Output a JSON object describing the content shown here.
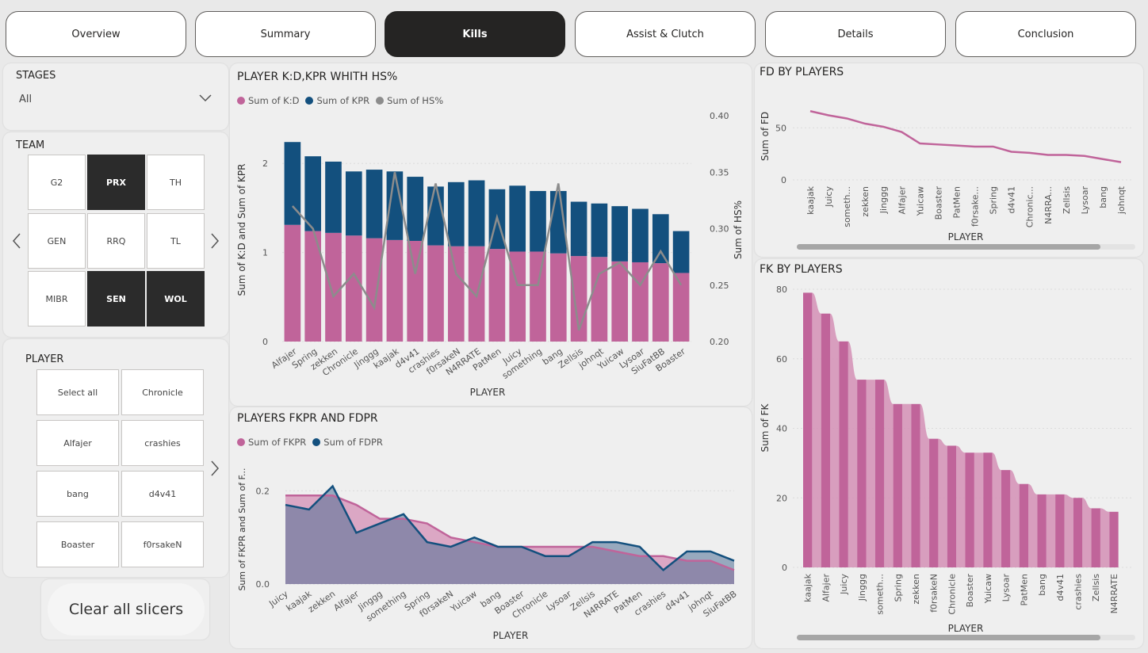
{
  "nav": {
    "tabs": [
      {
        "label": "Overview",
        "active": false
      },
      {
        "label": "Summary",
        "active": false
      },
      {
        "label": "Kills",
        "active": true
      },
      {
        "label": "Assist & Clutch",
        "active": false
      },
      {
        "label": "Details",
        "active": false
      },
      {
        "label": "Conclusion",
        "active": false
      }
    ]
  },
  "slicers": {
    "stages": {
      "title": "STAGES",
      "value": "All"
    },
    "team": {
      "title": "TEAM",
      "tiles": [
        {
          "label": "G2",
          "selected": false
        },
        {
          "label": "PRX",
          "selected": true
        },
        {
          "label": "TH",
          "selected": false
        },
        {
          "label": "GEN",
          "selected": false
        },
        {
          "label": "RRQ",
          "selected": false
        },
        {
          "label": "TL",
          "selected": false
        },
        {
          "label": "MIBR",
          "selected": false
        },
        {
          "label": "SEN",
          "selected": true
        },
        {
          "label": "WOL",
          "selected": true
        }
      ]
    },
    "player": {
      "title": "PLAYER",
      "tiles": [
        {
          "label": "Select all"
        },
        {
          "label": "Chronicle"
        },
        {
          "label": "Alfajer"
        },
        {
          "label": "crashies"
        },
        {
          "label": "bang"
        },
        {
          "label": "d4v41"
        },
        {
          "label": "Boaster"
        },
        {
          "label": "f0rsakeN"
        }
      ]
    },
    "clear_label": "Clear all slicers"
  },
  "colors": {
    "pink": "#c0649a",
    "pink_light": "#d48fb5",
    "navy": "#13507e",
    "grey": "#8c8c8c",
    "area_purple": "#8c8aa8"
  },
  "chart_data": [
    {
      "id": "kd_kpr_hs",
      "type": "bar",
      "title": "PLAYER K:D,KPR WHITH HS%",
      "xlabel": "PLAYER",
      "ylabel": "Sum of K:D and Sum of KPR",
      "y2label": "Sum of HS%",
      "ylim": [
        0,
        2.5
      ],
      "y2lim": [
        0.2,
        0.4
      ],
      "yticks": [
        "0",
        "1",
        "2"
      ],
      "y2ticks": [
        "0.20",
        "0.25",
        "0.30",
        "0.35",
        "0.40"
      ],
      "legend": [
        "Sum of K:D",
        "Sum of KPR",
        "Sum of HS%"
      ],
      "categories": [
        "Alfajer",
        "Spring",
        "zekken",
        "Chronicle",
        "Jinggg",
        "kaajak",
        "d4v41",
        "crashies",
        "f0rsakeN",
        "N4RRATE",
        "PatMen",
        "Juicy",
        "something",
        "bang",
        "Zellsis",
        "johnqt",
        "Yuicaw",
        "Lysoar",
        "SiuFatBB",
        "Boaster"
      ],
      "series": [
        {
          "name": "Sum of K:D",
          "values": [
            1.31,
            1.24,
            1.22,
            1.19,
            1.16,
            1.14,
            1.13,
            1.08,
            1.07,
            1.07,
            1.04,
            1.01,
            1.01,
            0.99,
            0.96,
            0.95,
            0.9,
            0.89,
            0.88,
            0.77
          ]
        },
        {
          "name": "Sum of KPR",
          "values": [
            0.93,
            0.84,
            0.8,
            0.72,
            0.77,
            0.77,
            0.72,
            0.66,
            0.72,
            0.74,
            0.67,
            0.74,
            0.68,
            0.7,
            0.61,
            0.6,
            0.62,
            0.6,
            0.55,
            0.47
          ]
        },
        {
          "name": "Sum of HS%",
          "values": [
            0.32,
            0.3,
            0.24,
            0.26,
            0.23,
            0.35,
            0.26,
            0.34,
            0.26,
            0.24,
            0.31,
            0.25,
            0.25,
            0.34,
            0.21,
            0.26,
            0.27,
            0.25,
            0.28,
            0.25
          ]
        }
      ]
    },
    {
      "id": "fkpr_fdpr",
      "type": "area",
      "title": "PLAYERS FKPR AND FDPR",
      "xlabel": "PLAYER",
      "ylabel": "Sum of FKPR and Sum of F...",
      "ylim": [
        0,
        0.25
      ],
      "yticks": [
        "0.0",
        "0.2"
      ],
      "legend": [
        "Sum of FKPR",
        "Sum of FDPR"
      ],
      "categories": [
        "Juicy",
        "kaajak",
        "zekken",
        "Alfajer",
        "Jinggg",
        "something",
        "Spring",
        "f0rsakeN",
        "Yuicaw",
        "bang",
        "Boaster",
        "Chronicle",
        "Lysoar",
        "Zellsis",
        "N4RRATE",
        "PatMen",
        "crashies",
        "d4v41",
        "johnqt",
        "SiuFatBB"
      ],
      "series": [
        {
          "name": "Sum of FKPR",
          "values": [
            0.19,
            0.19,
            0.19,
            0.17,
            0.14,
            0.14,
            0.13,
            0.1,
            0.09,
            0.08,
            0.08,
            0.08,
            0.08,
            0.08,
            0.07,
            0.06,
            0.06,
            0.05,
            0.05,
            0.03
          ]
        },
        {
          "name": "Sum of FDPR",
          "values": [
            0.17,
            0.16,
            0.21,
            0.11,
            0.13,
            0.15,
            0.09,
            0.08,
            0.1,
            0.08,
            0.08,
            0.06,
            0.06,
            0.09,
            0.09,
            0.08,
            0.03,
            0.07,
            0.07,
            0.05
          ]
        }
      ]
    },
    {
      "id": "fd_players",
      "type": "line",
      "title": "FD BY PLAYERS",
      "xlabel": "PLAYER",
      "ylabel": "Sum of FD",
      "ylim": [
        0,
        70
      ],
      "yticks": [
        "0",
        "50"
      ],
      "categories": [
        "kaajak",
        "Juicy",
        "someth...",
        "zekken",
        "Jinggg",
        "Alfajer",
        "Yuicaw",
        "Boaster",
        "PatMen",
        "f0rsake...",
        "Spring",
        "d4v41",
        "Chronic...",
        "N4RRA...",
        "Zellsis",
        "Lysoar",
        "bang",
        "johnqt"
      ],
      "values": [
        66,
        62,
        59,
        54,
        51,
        46,
        35,
        34,
        33,
        32,
        32,
        27,
        26,
        24,
        24,
        23,
        20,
        17
      ]
    },
    {
      "id": "fk_players",
      "type": "bar",
      "title": "FK BY PLAYERS",
      "xlabel": "PLAYER",
      "ylabel": "Sum of FK",
      "ylim": [
        0,
        80
      ],
      "yticks": [
        "0",
        "20",
        "40",
        "60",
        "80"
      ],
      "categories": [
        "kaajak",
        "Alfajer",
        "Juicy",
        "Jinggg",
        "someth...",
        "Spring",
        "zekken",
        "f0rsakeN",
        "Chronicle",
        "Boaster",
        "Yuicaw",
        "Lysoar",
        "PatMen",
        "bang",
        "d4v41",
        "crashies",
        "Zellsis",
        "N4RRATE"
      ],
      "values": [
        79,
        73,
        65,
        54,
        54,
        47,
        47,
        37,
        35,
        33,
        33,
        28,
        24,
        21,
        21,
        20,
        17,
        16
      ]
    }
  ]
}
